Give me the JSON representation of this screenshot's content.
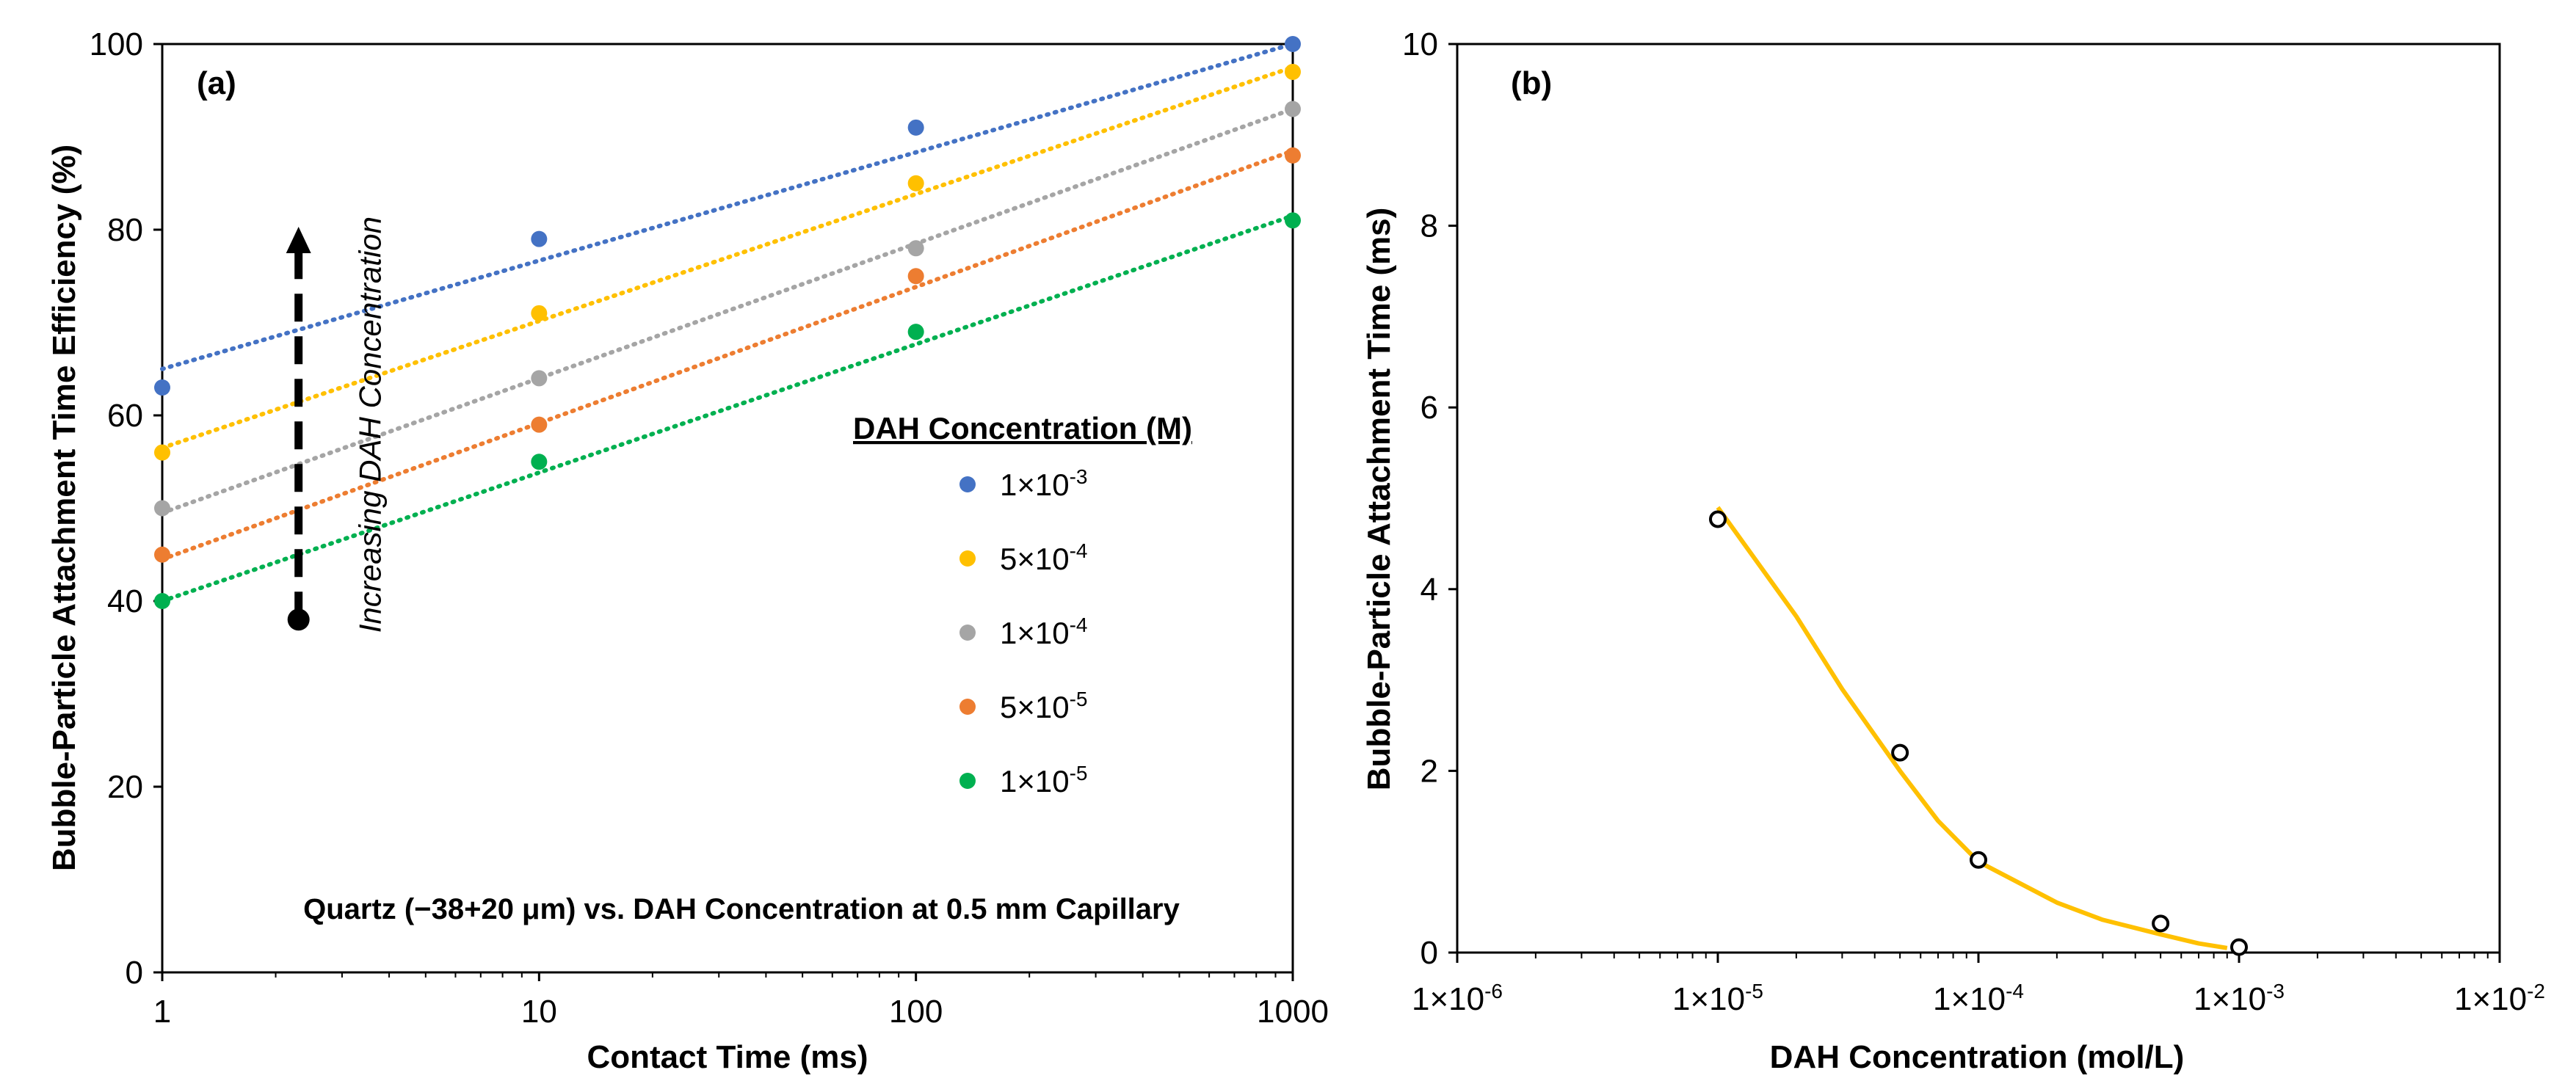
{
  "chart_data": [
    {
      "panel": "(a)",
      "type": "scatter",
      "xscale": "log",
      "x": [
        1,
        10,
        100,
        1000
      ],
      "xlim": [
        1,
        1000
      ],
      "ylim": [
        0,
        100
      ],
      "xticks": [
        "1",
        "10",
        "100",
        "1000"
      ],
      "yticks": [
        "0",
        "20",
        "40",
        "60",
        "80",
        "100"
      ],
      "xlabel": "Contact Time (ms)",
      "ylabel": "Bubble-Particle Attachment Time Efficiency (%)",
      "legend_title": "DAH Concentration (M)",
      "legend_position": "center-right",
      "series": [
        {
          "name": "1×10-3",
          "base": "1×10",
          "exp": "-3",
          "color": "#4472C4",
          "values": [
            63,
            79,
            91,
            100
          ],
          "trend": [
            65,
            100
          ]
        },
        {
          "name": "5×10-4",
          "base": "5×10",
          "exp": "-4",
          "color": "#FFC000",
          "values": [
            56,
            71,
            85,
            97
          ],
          "trend": [
            56.5,
            97.5
          ]
        },
        {
          "name": "1×10-4",
          "base": "1×10",
          "exp": "-4",
          "color": "#A5A5A5",
          "values": [
            50,
            64,
            78,
            93
          ],
          "trend": [
            49.5,
            93
          ]
        },
        {
          "name": "5×10-5",
          "base": "5×10",
          "exp": "-5",
          "color": "#ED7D31",
          "values": [
            45,
            59,
            75,
            88
          ],
          "trend": [
            44.5,
            88.5
          ]
        },
        {
          "name": "1×10-5",
          "base": "1×10",
          "exp": "-5",
          "color": "#00B050",
          "values": [
            40,
            55,
            69,
            81
          ],
          "trend": [
            40,
            81.5
          ]
        }
      ],
      "annotations": {
        "arrow_label": "Increasing DAH Concentration",
        "arrow_from_y": 38,
        "arrow_to_y": 80,
        "arrow_x": 2.3,
        "caption": "Quartz (−38+20 μm) vs. DAH Concentration at 0.5 mm Capillary"
      }
    },
    {
      "panel": "(b)",
      "type": "scatter",
      "xscale": "log",
      "xlim": [
        1e-06,
        0.01
      ],
      "ylim": [
        0,
        10
      ],
      "xticks": [
        {
          "base": "1×10",
          "exp": "-6"
        },
        {
          "base": "1×10",
          "exp": "-5"
        },
        {
          "base": "1×10",
          "exp": "-4"
        },
        {
          "base": "1×10",
          "exp": "-3"
        },
        {
          "base": "1×10",
          "exp": "-2"
        }
      ],
      "yticks": [
        "0",
        "2",
        "4",
        "6",
        "8",
        "10"
      ],
      "xlabel": "DAH Concentration (mol/L)",
      "ylabel": "Bubble-Particle Attachment Time (ms)",
      "points": {
        "x": [
          1e-05,
          5e-05,
          0.0001,
          0.0005,
          0.001
        ],
        "y": [
          4.77,
          2.2,
          1.02,
          0.32,
          0.06
        ]
      },
      "fit": {
        "color": "#FFC000",
        "x": [
          1e-05,
          2e-05,
          3e-05,
          5e-05,
          7e-05,
          0.0001,
          0.0002,
          0.0003,
          0.0005,
          0.0007,
          0.0009
        ],
        "y": [
          4.9,
          3.7,
          2.9,
          2.0,
          1.45,
          1.0,
          0.55,
          0.36,
          0.2,
          0.1,
          0.05
        ]
      }
    }
  ]
}
